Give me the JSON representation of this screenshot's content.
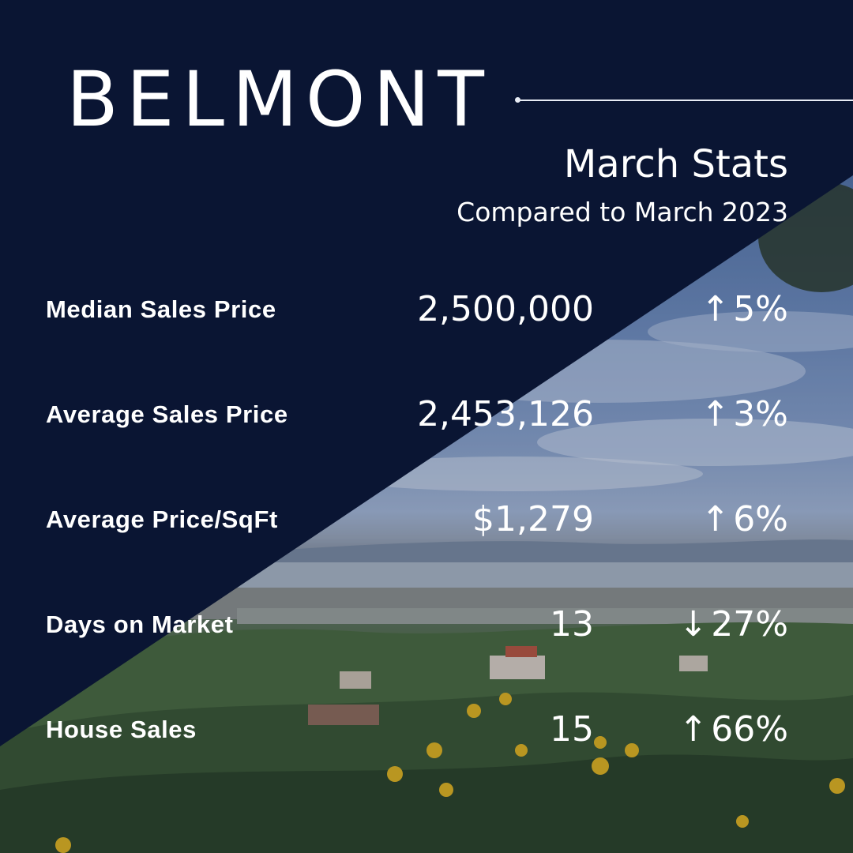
{
  "header": {
    "city": "BELMONT",
    "subtitle": "March Stats",
    "comparison": "Compared to March 2023"
  },
  "colors": {
    "navy": "#0a1533",
    "text": "#ffffff"
  },
  "stats": [
    {
      "label": "Median Sales Price",
      "value": "2,500,000",
      "direction": "up",
      "arrow": "↑",
      "change": "5%"
    },
    {
      "label": "Average Sales Price",
      "value": "2,453,126",
      "direction": "up",
      "arrow": "↑",
      "change": "3%"
    },
    {
      "label": "Average Price/SqFt",
      "value": "$1,279",
      "direction": "up",
      "arrow": "↑",
      "change": "6%"
    },
    {
      "label": "Days on Market",
      "value": "13",
      "direction": "down",
      "arrow": "↓",
      "change": "27%"
    },
    {
      "label": "House Sales",
      "value": "15",
      "direction": "up",
      "arrow": "↑",
      "change": "66%"
    }
  ]
}
